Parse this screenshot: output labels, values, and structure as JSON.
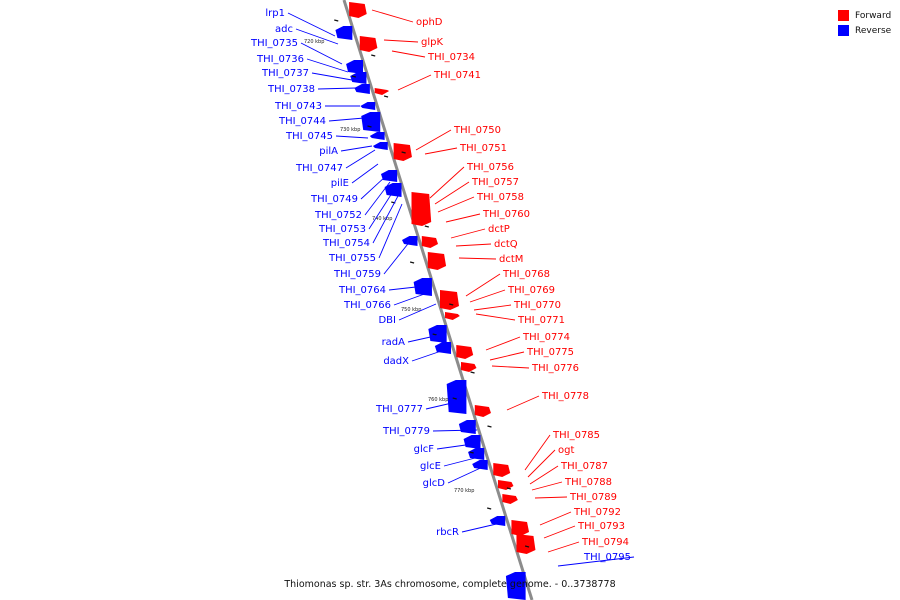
{
  "legend": {
    "forward_label": "Forward",
    "reverse_label": "Reverse",
    "forward_color": "#ff0000",
    "reverse_color": "#0000ff"
  },
  "caption": "Thiomonas sp. str. 3As chromosome, complete genome. - 0..3738778",
  "axis": {
    "tick_labels": [
      "720 kbp",
      "730 kbp",
      "740 kbp",
      "750 kbp",
      "760 kbp",
      "770 kbp"
    ]
  },
  "forward_genes": [
    "ophD",
    "glpK",
    "THI_0734",
    "THI_0741",
    "THI_0750",
    "THI_0751",
    "THI_0756",
    "THI_0757",
    "THI_0758",
    "THI_0760",
    "dctP",
    "dctQ",
    "dctM",
    "THI_0768",
    "THI_0769",
    "THI_0770",
    "THI_0771",
    "THI_0774",
    "THI_0775",
    "THI_0776",
    "THI_0778",
    "THI_0785",
    "ogt",
    "THI_0787",
    "THI_0788",
    "THI_0789",
    "THI_0792",
    "THI_0793",
    "THI_0794"
  ],
  "reverse_genes": [
    "lrp1",
    "adc",
    "THI_0735",
    "THI_0736",
    "THI_0737",
    "THI_0738",
    "THI_0743",
    "THI_0744",
    "THI_0745",
    "pilA",
    "THI_0747",
    "pilE",
    "THI_0749",
    "THI_0752",
    "THI_0753",
    "THI_0754",
    "THI_0755",
    "THI_0759",
    "THI_0764",
    "THI_0766",
    "DBI",
    "radA",
    "dadX",
    "THI_0777",
    "THI_0779",
    "glcF",
    "glcE",
    "glcD",
    "rbcR",
    "THI_0795"
  ]
}
